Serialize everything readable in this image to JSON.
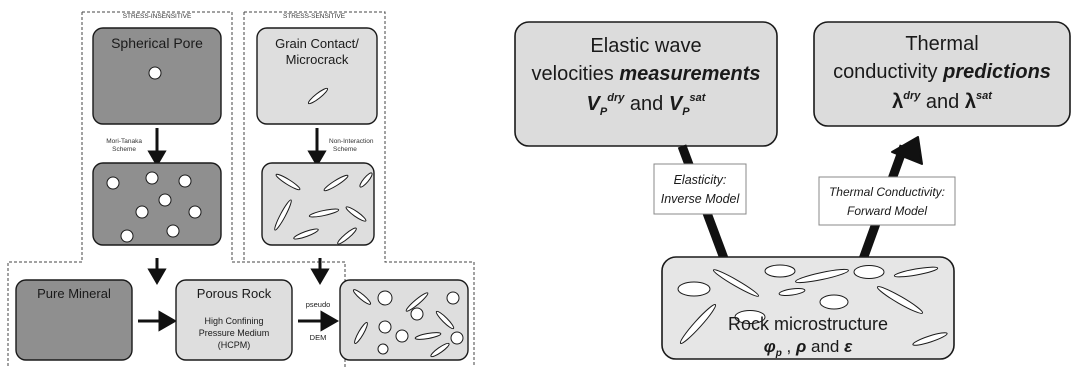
{
  "left_panel": {
    "region_labels": {
      "stress_insensitive": "STRESS-INSENSITIVE",
      "stress_sensitive": "STRESS-SENSITIVE"
    },
    "boxes": {
      "spherical_pore": "Spherical Pore",
      "grain_contact_line1": "Grain Contact/",
      "grain_contact_line2": "Microcrack",
      "pure_mineral": "Pure Mineral",
      "porous_rock_title": "Porous Rock",
      "porous_rock_line1": "High Confining",
      "porous_rock_line2": "Pressure Medium",
      "porous_rock_line3": "(HCPM)"
    },
    "arrows": {
      "mori_tanaka_line1": "Mori-Tanaka",
      "mori_tanaka_line2": "Scheme",
      "non_interaction_line1": "Non-Interaction",
      "non_interaction_line2": "Scheme",
      "pseudo": "pseudo",
      "dem": "DEM"
    }
  },
  "right_panel": {
    "velocities_box": {
      "line1": "Elastic wave",
      "line2_prefix": "velocities ",
      "line2_emphasis": "measurements",
      "v_symbol": "V",
      "p_sub": "P",
      "dry_sup": "dry",
      "sat_sup": "sat",
      "and": "and"
    },
    "conductivity_box": {
      "line1": "Thermal",
      "line2_prefix": "conductivity ",
      "line2_emphasis": "predictions",
      "lambda": "λ",
      "dry_sup": "dry",
      "sat_sup": "sat",
      "and": "and"
    },
    "elasticity_label": {
      "line1": "Elasticity:",
      "line2": "Inverse Model"
    },
    "thermal_label": {
      "line1": "Thermal Conductivity:",
      "line2": "Forward Model"
    },
    "rock_box": {
      "title": "Rock microstructure",
      "phi": "φ",
      "phi_sub": "p",
      "comma": " , ",
      "rho": "ρ",
      "and": "and",
      "eps": "ε"
    }
  },
  "colors": {
    "dark_fill": "#8f8f8f",
    "light_fill": "#dedede",
    "rock_fill": "#e6e6e6",
    "velocity_fill": "#dcdcdc",
    "stroke": "#1a1a1a"
  }
}
